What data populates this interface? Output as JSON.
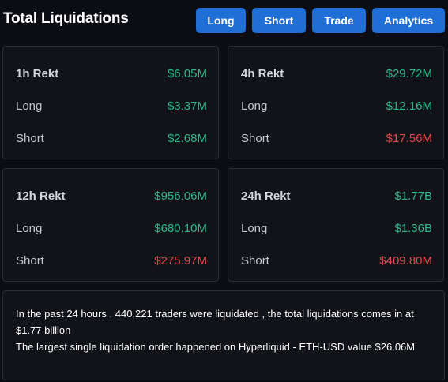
{
  "header": {
    "title": "Total Liquidations",
    "buttons": {
      "long": "Long",
      "short": "Short",
      "trade": "Trade",
      "analytics": "Analytics"
    }
  },
  "cards": {
    "h1": {
      "label": "1h Rekt",
      "total": "$6.05M",
      "long_label": "Long",
      "long": "$3.37M",
      "short_label": "Short",
      "short": "$2.68M"
    },
    "h4": {
      "label": "4h Rekt",
      "total": "$29.72M",
      "long_label": "Long",
      "long": "$12.16M",
      "short_label": "Short",
      "short": "$17.56M"
    },
    "h12": {
      "label": "12h Rekt",
      "total": "$956.06M",
      "long_label": "Long",
      "long": "$680.10M",
      "short_label": "Short",
      "short": "$275.97M"
    },
    "h24": {
      "label": "24h Rekt",
      "total": "$1.77B",
      "long_label": "Long",
      "long": "$1.36B",
      "short_label": "Short",
      "short": "$409.80M"
    }
  },
  "summary": {
    "line1": "In the past 24 hours , 440,221 traders were liquidated , the total liquidations comes in at $1.77 billion",
    "line2": "The largest single liquidation order happened on Hyperliquid - ETH-USD value $26.06M"
  },
  "colors": {
    "accent": "#1f6fd6",
    "positive": "#2eb88a",
    "negative": "#e5484d",
    "background": "#0b0d12",
    "card": "#111319"
  }
}
